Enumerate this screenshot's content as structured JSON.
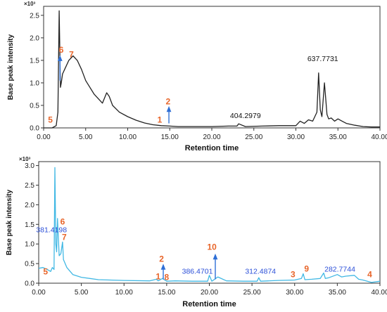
{
  "chart_data": [
    {
      "type": "line",
      "x_multiplier": "×10³",
      "xlabel": "Retention time",
      "ylabel": "Base peak intensity",
      "xlim": [
        0,
        40
      ],
      "ylim": [
        0,
        2.7
      ],
      "xticks": [
        "0.00",
        "5.00",
        "10.00",
        "15.00",
        "20.00",
        "25.00",
        "30.00",
        "35.00",
        "40.00"
      ],
      "yticks": [
        "0.0",
        "0.5",
        "1.0",
        "1.5",
        "2.0",
        "2.5"
      ],
      "line_color": "#222222",
      "series": [
        {
          "x": [
            0,
            1.0,
            1.5,
            1.7,
            1.85,
            2.0,
            2.1,
            2.25,
            2.5,
            3.0,
            3.5,
            4.0,
            4.5,
            5.0,
            6.0,
            7.0,
            7.5,
            7.8,
            8.2,
            9.0,
            10.0,
            11.0,
            12.0,
            13.0,
            14.0,
            15.0,
            16.0,
            18.0,
            20.0,
            22.0,
            23.0,
            23.2,
            24.0,
            26.0,
            28.0,
            30.0,
            30.5,
            31.0,
            31.5,
            32.0,
            32.5,
            32.7,
            32.9,
            33.1,
            33.4,
            33.7,
            33.9,
            34.2,
            34.6,
            35.0,
            35.5,
            36.0,
            37.0,
            38.0,
            39.0,
            40.0
          ],
          "y": [
            0,
            0,
            0.05,
            0.35,
            2.6,
            0.9,
            1.0,
            1.2,
            1.3,
            1.5,
            1.6,
            1.5,
            1.3,
            1.05,
            0.75,
            0.55,
            0.78,
            0.7,
            0.5,
            0.35,
            0.25,
            0.17,
            0.11,
            0.07,
            0.05,
            0.04,
            0.03,
            0.03,
            0.03,
            0.04,
            0.04,
            0.09,
            0.03,
            0.04,
            0.05,
            0.05,
            0.15,
            0.1,
            0.18,
            0.15,
            0.35,
            1.22,
            0.4,
            0.25,
            1.0,
            0.3,
            0.2,
            0.22,
            0.15,
            0.2,
            0.15,
            0.1,
            0.06,
            0.03,
            0.02,
            0.02
          ]
        }
      ],
      "annotations": [
        {
          "text": "5",
          "x": 0.8,
          "y": 0.12,
          "color": "#e8652a",
          "bold": true
        },
        {
          "text": "6",
          "x": 2.1,
          "y": 1.67,
          "color": "#e8652a",
          "bold": true
        },
        {
          "text": "7",
          "x": 3.3,
          "y": 1.57,
          "color": "#e8652a",
          "bold": true
        },
        {
          "text": "1",
          "x": 13.8,
          "y": 0.12,
          "color": "#e8652a",
          "bold": true
        },
        {
          "text": "2",
          "x": 14.8,
          "y": 0.52,
          "color": "#e8652a",
          "bold": true
        },
        {
          "text": "404.2979",
          "x": 24.0,
          "y": 0.22,
          "color": "#111111",
          "bold": false
        },
        {
          "text": "637.7731",
          "x": 33.2,
          "y": 1.48,
          "color": "#111111",
          "bold": false
        }
      ],
      "arrows": [
        {
          "x": 1.95,
          "y_from": 1.05,
          "y_to": 1.55,
          "color": "#2e6fd6"
        },
        {
          "x": 14.9,
          "y_from": 0.1,
          "y_to": 0.42,
          "color": "#2e6fd6"
        }
      ]
    },
    {
      "type": "line",
      "x_multiplier": "×10³",
      "xlabel": "Retention time",
      "ylabel": "Base peak intensity",
      "xlim": [
        0,
        40
      ],
      "ylim": [
        0,
        3.1
      ],
      "xticks": [
        "0.00",
        "5.00",
        "10.00",
        "15.00",
        "20.00",
        "25.00",
        "30.00",
        "35.00",
        "40.00"
      ],
      "yticks": [
        "0.0",
        "0.5",
        "1.0",
        "1.5",
        "2.0",
        "2.5",
        "3.0"
      ],
      "line_color": "#41b8e4",
      "series": [
        {
          "x": [
            0,
            0.5,
            1.0,
            1.4,
            1.6,
            1.8,
            1.9,
            2.0,
            2.1,
            2.2,
            2.4,
            2.6,
            2.8,
            2.9,
            3.0,
            3.3,
            4.0,
            5.0,
            7.0,
            10.0,
            13.0,
            13.8,
            14.0,
            14.5,
            15.0,
            16.0,
            18.0,
            19.8,
            20.0,
            20.3,
            21.0,
            22.0,
            24.0,
            25.6,
            25.8,
            26.0,
            28.0,
            30.0,
            30.8,
            31.0,
            31.2,
            32.0,
            33.0,
            33.4,
            33.6,
            34.0,
            35.0,
            35.5,
            36.0,
            37.0,
            37.5,
            38.0,
            39.0,
            40.0
          ],
          "y": [
            0.38,
            0.4,
            0.35,
            0.3,
            0.4,
            0.35,
            2.95,
            1.0,
            0.8,
            1.65,
            0.7,
            0.75,
            1.05,
            0.6,
            0.55,
            0.4,
            0.22,
            0.15,
            0.09,
            0.07,
            0.06,
            0.1,
            0.06,
            0.12,
            0.05,
            0.06,
            0.05,
            0.05,
            0.2,
            0.05,
            0.16,
            0.06,
            0.05,
            0.05,
            0.14,
            0.05,
            0.07,
            0.08,
            0.12,
            0.24,
            0.09,
            0.1,
            0.12,
            0.26,
            0.12,
            0.14,
            0.22,
            0.16,
            0.18,
            0.2,
            0.1,
            0.08,
            0.02,
            0.05
          ]
        }
      ],
      "annotations": [
        {
          "text": "5",
          "x": 0.8,
          "y": 0.22,
          "color": "#e8652a",
          "bold": true
        },
        {
          "text": "6",
          "x": 2.8,
          "y": 1.5,
          "color": "#e8652a",
          "bold": true
        },
        {
          "text": "381.4198",
          "x": 1.5,
          "y": 1.3,
          "color": "#2b4fd8",
          "bold": false
        },
        {
          "text": "7",
          "x": 3.0,
          "y": 1.1,
          "color": "#e8652a",
          "bold": true
        },
        {
          "text": "1",
          "x": 14.0,
          "y": 0.1,
          "color": "#e8652a",
          "bold": true
        },
        {
          "text": "2",
          "x": 14.4,
          "y": 0.55,
          "color": "#e8652a",
          "bold": true
        },
        {
          "text": "8",
          "x": 15.0,
          "y": 0.08,
          "color": "#e8652a",
          "bold": true
        },
        {
          "text": "10",
          "x": 20.3,
          "y": 0.85,
          "color": "#e8652a",
          "bold": true
        },
        {
          "text": "386.4701",
          "x": 18.6,
          "y": 0.24,
          "color": "#2b4fd8",
          "bold": false
        },
        {
          "text": "312.4874",
          "x": 26.0,
          "y": 0.24,
          "color": "#2b4fd8",
          "bold": false
        },
        {
          "text": "3",
          "x": 29.8,
          "y": 0.15,
          "color": "#e8652a",
          "bold": true
        },
        {
          "text": "9",
          "x": 31.4,
          "y": 0.3,
          "color": "#e8652a",
          "bold": true
        },
        {
          "text": "282.7744",
          "x": 35.3,
          "y": 0.3,
          "color": "#2b4fd8",
          "bold": false
        },
        {
          "text": "4",
          "x": 38.8,
          "y": 0.15,
          "color": "#e8652a",
          "bold": true
        }
      ],
      "arrows": [
        {
          "x": 14.6,
          "y_from": 0.1,
          "y_to": 0.42,
          "color": "#2e6fd6"
        },
        {
          "x": 20.7,
          "y_from": 0.1,
          "y_to": 0.68,
          "color": "#2e6fd6"
        }
      ]
    }
  ]
}
